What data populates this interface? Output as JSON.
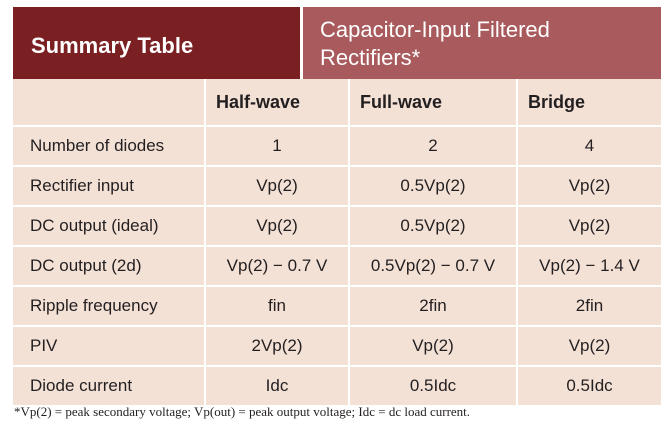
{
  "header": {
    "summary_label": "Summary Table",
    "title_line1": "Capacitor-Input Filtered",
    "title_line2": "Rectifiers*"
  },
  "table": {
    "columns": [
      "",
      "Half-wave",
      "Full-wave",
      "Bridge"
    ],
    "rows": [
      {
        "label": "Number of diodes",
        "values": [
          "1",
          "2",
          "4"
        ]
      },
      {
        "label": "Rectifier input",
        "values": [
          "Vp(2)",
          "0.5Vp(2)",
          "Vp(2)"
        ]
      },
      {
        "label": "DC output (ideal)",
        "values": [
          "Vp(2)",
          "0.5Vp(2)",
          "Vp(2)"
        ]
      },
      {
        "label": "DC output (2d)",
        "values": [
          "Vp(2) − 0.7 V",
          "0.5Vp(2) − 0.7 V",
          "Vp(2) − 1.4 V"
        ]
      },
      {
        "label": "Ripple frequency",
        "values": [
          "fin",
          "2fin",
          "2fin"
        ]
      },
      {
        "label": "PIV",
        "values": [
          "2Vp(2)",
          "Vp(2)",
          "Vp(2)"
        ]
      },
      {
        "label": "Diode current",
        "values": [
          "Idc",
          "0.5Idc",
          "0.5Idc"
        ]
      }
    ]
  },
  "footnote": "*Vp(2) = peak secondary voltage; Vp(out) = peak output voltage; Idc = dc load current."
}
